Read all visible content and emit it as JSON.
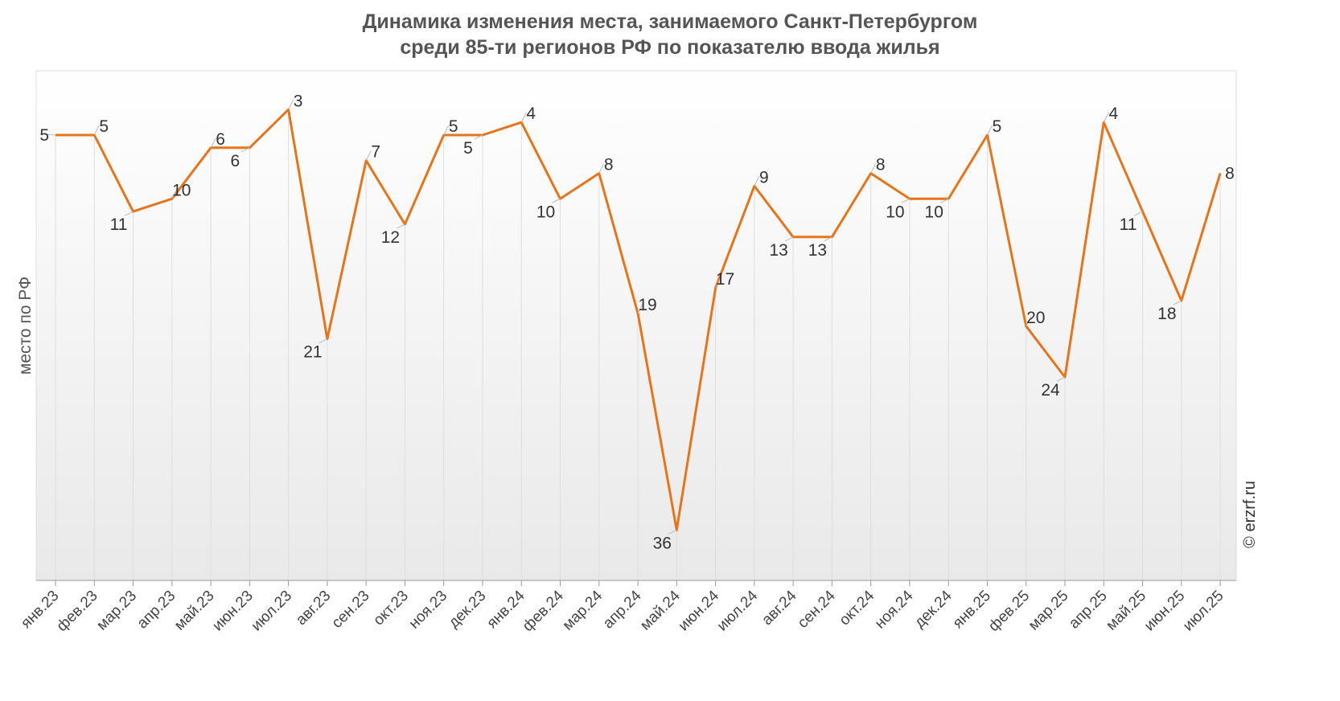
{
  "watermark": "© erzrf.ru",
  "chart_data": {
    "type": "line",
    "title": "Динамика изменения места, занимаемого Санкт-Петербургом",
    "subtitle": "среди 85-ти регионов РФ по показателю ввода жилья",
    "xlabel": "",
    "ylabel": "место по РФ",
    "y_inverted": true,
    "ylim": [
      40,
      1
    ],
    "grid": "vertical",
    "legend": "none",
    "line_color": "#E8741A",
    "categories": [
      "янв.23",
      "фев.23",
      "мар.23",
      "апр.23",
      "май.23",
      "июн.23",
      "июл.23",
      "авг.23",
      "сен.23",
      "окт.23",
      "ноя.23",
      "дек.23",
      "янв.24",
      "фев.24",
      "мар.24",
      "апр.24",
      "май.24",
      "июн.24",
      "июл.24",
      "авг.24",
      "сен.24",
      "окт.24",
      "ноя.24",
      "дек.24",
      "янв.25",
      "фев.25",
      "мар.25",
      "апр.25",
      "май.25",
      "июн.25",
      "июл.25"
    ],
    "series": [
      {
        "values": [
          5,
          5,
          11,
          10,
          6,
          6,
          3,
          21,
          7,
          12,
          5,
          5,
          4,
          10,
          8,
          19,
          36,
          17,
          9,
          13,
          13,
          8,
          10,
          10,
          5,
          20,
          24,
          4,
          11,
          18,
          8
        ]
      }
    ]
  }
}
